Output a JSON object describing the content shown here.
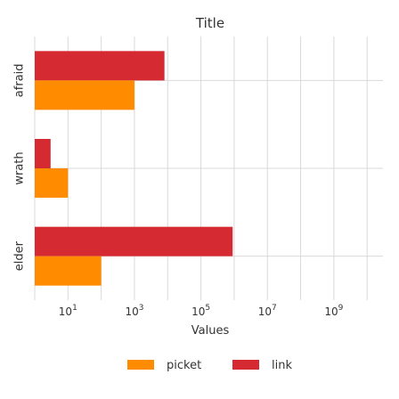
{
  "chart_data": {
    "type": "bar",
    "orientation": "horizontal",
    "title": "Title",
    "xlabel": "Values",
    "ylabel": "",
    "xscale": "log",
    "xlim": [
      1,
      30000000000
    ],
    "xticks": [
      {
        "value": 10,
        "base": "10",
        "exp": "1"
      },
      {
        "value": 1000,
        "base": "10",
        "exp": "3"
      },
      {
        "value": 100000,
        "base": "10",
        "exp": "5"
      },
      {
        "value": 10000000,
        "base": "10",
        "exp": "7"
      },
      {
        "value": 1000000000,
        "base": "10",
        "exp": "9"
      }
    ],
    "categories": [
      "afraid",
      "wrath",
      "elder"
    ],
    "series": [
      {
        "name": "link",
        "color": "#d62a32",
        "values": [
          8000,
          3,
          900000
        ]
      },
      {
        "name": "picket",
        "color": "#ff8c00",
        "values": [
          1000,
          10,
          100
        ]
      }
    ],
    "legend": {
      "position": "bottom",
      "order": [
        "picket",
        "link"
      ]
    },
    "grid": true
  }
}
